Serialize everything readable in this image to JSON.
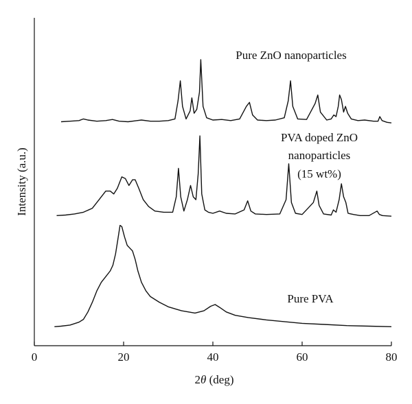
{
  "chart_data": {
    "type": "line",
    "title": "",
    "xlabel_prefix": "2",
    "xlabel_theta": "θ",
    "xlabel_suffix": " (deg)",
    "ylabel": "Intensity (a.u.)",
    "xlim": [
      0,
      80
    ],
    "x_ticks": [
      "0",
      "20",
      "40",
      "60",
      "80"
    ],
    "y_ticks": [],
    "grid": false,
    "annotations": [
      {
        "lines": [
          "Pure ZnO nanoparticles"
        ]
      },
      {
        "lines": [
          "PVA doped ZnO",
          "nanoparticles",
          "(15 wt%)"
        ]
      },
      {
        "lines": [
          "Pure PVA"
        ]
      }
    ],
    "series": [
      {
        "name": "Pure ZnO nanoparticles",
        "x": [
          6,
          8,
          10,
          11,
          12,
          14,
          16,
          17.5,
          19,
          21,
          23,
          24,
          26,
          28,
          30,
          31.5,
          32.2,
          32.7,
          33.2,
          34,
          34.9,
          35.3,
          35.8,
          36.4,
          37.0,
          37.3,
          37.8,
          38.6,
          40,
          42,
          44,
          46,
          47.5,
          48.2,
          48.9,
          50,
          52,
          54,
          56,
          56.9,
          57.4,
          57.9,
          59,
          61,
          62.9,
          63.5,
          64.1,
          65.5,
          66.5,
          67.1,
          67.6,
          68.1,
          68.4,
          68.8,
          69.3,
          69.7,
          70.2,
          71,
          72.5,
          74,
          76,
          77.0,
          77.4,
          77.9,
          79,
          80
        ],
        "y": [
          3,
          4,
          5,
          8,
          6,
          4,
          5,
          7,
          4,
          3,
          5,
          6,
          4,
          4,
          5,
          8,
          40,
          75,
          30,
          8,
          22,
          45,
          18,
          25,
          55,
          112,
          30,
          10,
          6,
          7,
          5,
          8,
          30,
          37,
          15,
          6,
          5,
          6,
          10,
          40,
          75,
          30,
          8,
          7,
          35,
          50,
          20,
          6,
          8,
          15,
          12,
          30,
          50,
          42,
          20,
          30,
          18,
          8,
          5,
          6,
          4,
          4,
          12,
          5,
          2,
          1
        ]
      },
      {
        "name": "PVA doped ZnO nanoparticles (15 wt%)",
        "x": [
          5,
          7,
          9,
          11,
          13,
          14.5,
          16,
          17,
          17.8,
          18.6,
          19.6,
          20.4,
          21.2,
          22,
          22.6,
          23.4,
          24.4,
          25.6,
          27,
          29,
          31,
          31.8,
          32.3,
          32.8,
          33.5,
          34.3,
          35.0,
          35.6,
          36.2,
          36.7,
          37.1,
          37.5,
          38.2,
          39,
          40,
          41.5,
          43,
          45,
          47,
          47.8,
          48.5,
          49.5,
          52,
          55,
          56.4,
          57.0,
          57.6,
          58.5,
          60,
          62.5,
          63.3,
          63.8,
          64.8,
          66.5,
          67.0,
          67.6,
          68.3,
          68.8,
          69.3,
          69.8,
          70.3,
          71.5,
          73,
          75,
          76.8,
          77.3,
          78,
          80
        ],
        "y": [
          2,
          3,
          5,
          8,
          15,
          30,
          45,
          45,
          40,
          50,
          70,
          67,
          55,
          65,
          65,
          50,
          30,
          18,
          10,
          8,
          8,
          35,
          85,
          35,
          10,
          30,
          55,
          35,
          30,
          75,
          142,
          40,
          12,
          8,
          6,
          10,
          6,
          5,
          12,
          28,
          10,
          5,
          4,
          5,
          30,
          93,
          25,
          6,
          4,
          25,
          45,
          20,
          5,
          3,
          12,
          8,
          30,
          58,
          35,
          25,
          6,
          4,
          2,
          2,
          10,
          4,
          2,
          1
        ]
      },
      {
        "name": "Pure PVA",
        "x": [
          4.5,
          6,
          8,
          10,
          11,
          12,
          13,
          14,
          15,
          16,
          17,
          17.6,
          18.2,
          18.7,
          19.2,
          19.6,
          20.2,
          20.8,
          21.4,
          22,
          22.6,
          23.2,
          24,
          25,
          26,
          28,
          30,
          33,
          36,
          38,
          39.5,
          40.5,
          41.5,
          43,
          45,
          48,
          52,
          56,
          60,
          65,
          70,
          75,
          80
        ],
        "y": [
          2,
          3,
          5,
          10,
          15,
          28,
          45,
          65,
          80,
          90,
          100,
          110,
          130,
          155,
          180,
          178,
          160,
          145,
          140,
          135,
          120,
          100,
          80,
          65,
          55,
          45,
          37,
          30,
          26,
          30,
          38,
          41,
          36,
          28,
          22,
          18,
          14,
          11,
          8,
          6,
          4,
          3,
          2
        ]
      }
    ]
  }
}
